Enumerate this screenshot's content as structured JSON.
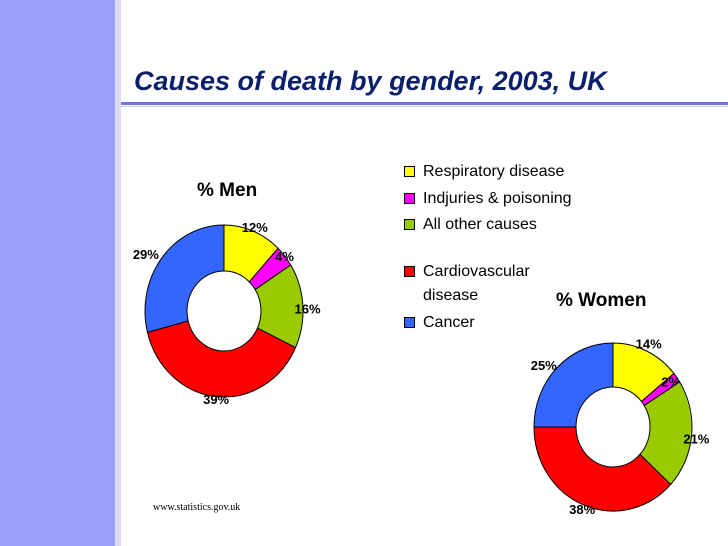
{
  "slide": {
    "title": "Causes of death by gender, 2003, UK",
    "source": "www.statistics.gov.uk"
  },
  "colors": {
    "respiratory": "#ffff00",
    "injuries": "#ff00ff",
    "other": "#99cc00",
    "cardio": "#ff0000",
    "cancer": "#3366ff",
    "sidebar": "#9b9ff7",
    "title": "#0b1f6b"
  },
  "legend": [
    {
      "label": "Respiratory disease",
      "color": "#ffff00"
    },
    {
      "label": "Indjuries & poisoning",
      "color": "#ff00ff"
    },
    {
      "label": "All other causes",
      "color": "#99cc00"
    },
    {
      "label": "Cardiovascular disease",
      "color": "#ff0000"
    },
    {
      "label": "Cancer",
      "color": "#3366ff"
    }
  ],
  "chart_data": [
    {
      "type": "pie",
      "title": "% Men",
      "categories": [
        "Respiratory disease",
        "Indjuries & poisoning",
        "All other causes",
        "Cardiovascular disease",
        "Cancer"
      ],
      "values": [
        12,
        4,
        16,
        39,
        29
      ],
      "labels": [
        "12%",
        "4%",
        "16%",
        "39%",
        "29%"
      ]
    },
    {
      "type": "pie",
      "title": "% Women",
      "categories": [
        "Respiratory disease",
        "Indjuries & poisoning",
        "All other causes",
        "Cardiovascular disease",
        "Cancer"
      ],
      "values": [
        14,
        2,
        21,
        38,
        25
      ],
      "labels": [
        "14%",
        "2%",
        "21%",
        "38%",
        "25%"
      ]
    }
  ]
}
